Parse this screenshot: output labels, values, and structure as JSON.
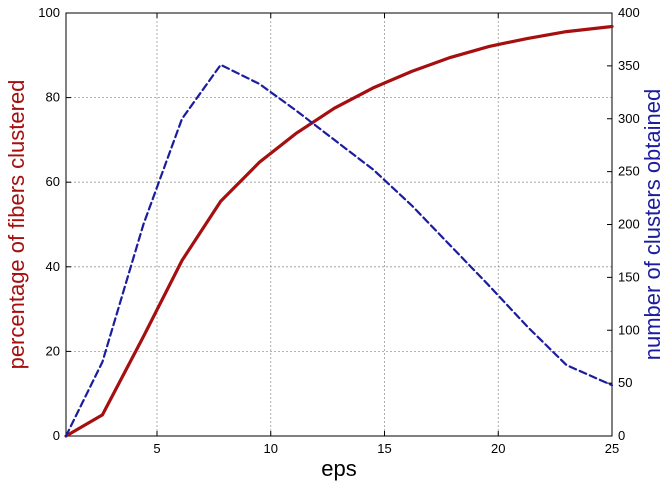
{
  "chart_data": {
    "type": "line",
    "xlabel": "eps",
    "ylabel_left": "percentage of fibers clustered",
    "ylabel_right": "number of clusters obtained",
    "xlim": [
      1,
      25
    ],
    "ylim_left": [
      0,
      100
    ],
    "ylim_right": [
      0,
      400
    ],
    "x_ticks": [
      5,
      10,
      15,
      20,
      25
    ],
    "y_left_ticks": [
      0,
      20,
      40,
      60,
      80,
      100
    ],
    "y_right_ticks": [
      0,
      50,
      100,
      150,
      200,
      250,
      300,
      350,
      400
    ],
    "grid": true,
    "series": [
      {
        "axis": "left",
        "style": "solid",
        "color": "#a50f0f",
        "x": [
          1,
          2.6,
          4.4,
          6.1,
          7.8,
          9.5,
          11.1,
          12.8,
          14.5,
          16.2,
          17.9,
          19.6,
          21.3,
          23.0,
          25.0
        ],
        "values": [
          0,
          5,
          23.5,
          41.5,
          55.5,
          64.7,
          71.5,
          77.5,
          82.3,
          86.2,
          89.5,
          92.1,
          94.0,
          95.6,
          96.8
        ]
      },
      {
        "axis": "right",
        "style": "dashed",
        "color": "#1c1ca0",
        "x": [
          1,
          2.6,
          4.4,
          6.1,
          7.8,
          9.5,
          11.1,
          12.8,
          14.5,
          16.2,
          17.9,
          19.6,
          21.3,
          23.0,
          25.0
        ],
        "values": [
          0,
          70,
          200,
          300,
          351,
          333,
          308,
          280,
          252,
          218,
          180,
          142,
          103,
          67,
          48
        ]
      }
    ]
  }
}
